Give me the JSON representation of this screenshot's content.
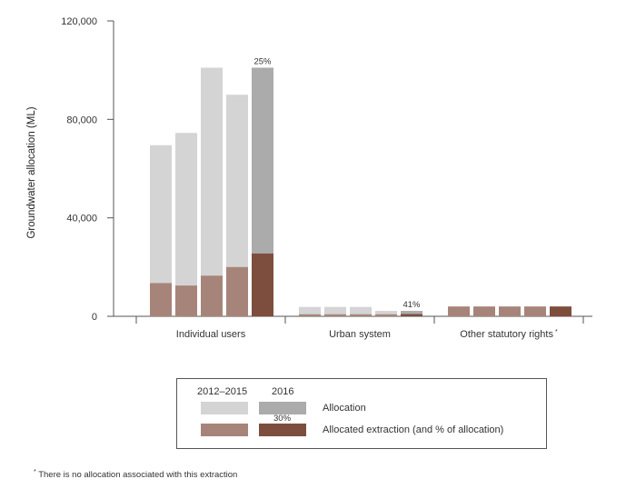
{
  "chart_data": {
    "type": "bar",
    "stacked_overlay": true,
    "ylabel": "Groundwater allocation (ML)",
    "ylim": [
      0,
      120000
    ],
    "yticks": [
      0,
      40000,
      80000,
      120000
    ],
    "ytick_labels": [
      "0",
      "40,000",
      "80,000",
      "120,000"
    ],
    "groups": [
      {
        "label": "Individual users",
        "bars": [
          {
            "year": "2012",
            "allocation": 69500,
            "extraction": 13500
          },
          {
            "year": "2013",
            "allocation": 74500,
            "extraction": 12500
          },
          {
            "year": "2014",
            "allocation": 101000,
            "extraction": 16500
          },
          {
            "year": "2015",
            "allocation": 90000,
            "extraction": 20000
          },
          {
            "year": "2016",
            "allocation": 101000,
            "extraction": 25500,
            "pct_label": "25%"
          }
        ]
      },
      {
        "label": "Urban system",
        "bars": [
          {
            "year": "2012",
            "allocation": 3800,
            "extraction": 800
          },
          {
            "year": "2013",
            "allocation": 3800,
            "extraction": 800
          },
          {
            "year": "2014",
            "allocation": 3800,
            "extraction": 800
          },
          {
            "year": "2015",
            "allocation": 2200,
            "extraction": 800
          },
          {
            "year": "2016",
            "allocation": 2200,
            "extraction": 900,
            "pct_label": "41%"
          }
        ]
      },
      {
        "label": "Other statutory rights",
        "label_suffix": "*",
        "bars": [
          {
            "year": "2012",
            "allocation": 0,
            "extraction": 4000
          },
          {
            "year": "2013",
            "allocation": 0,
            "extraction": 4000
          },
          {
            "year": "2014",
            "allocation": 0,
            "extraction": 4000
          },
          {
            "year": "2015",
            "allocation": 0,
            "extraction": 4000
          },
          {
            "year": "2016",
            "allocation": 0,
            "extraction": 4000
          }
        ]
      }
    ],
    "colors": {
      "allocation_2012_2015": "#d4d4d4",
      "allocation_2016": "#ababab",
      "extraction_2012_2015": "#a7847a",
      "extraction_2016": "#7d4e3e",
      "axis": "#555555"
    }
  },
  "legend": {
    "header_period": "2012–2015",
    "header_year": "2016",
    "allocation_label": "Allocation",
    "extraction_label": "Allocated extraction (and % of allocation)",
    "example_pct": "30%"
  },
  "footnote": {
    "marker": "*",
    "text": "There is no allocation associated with this extraction"
  }
}
